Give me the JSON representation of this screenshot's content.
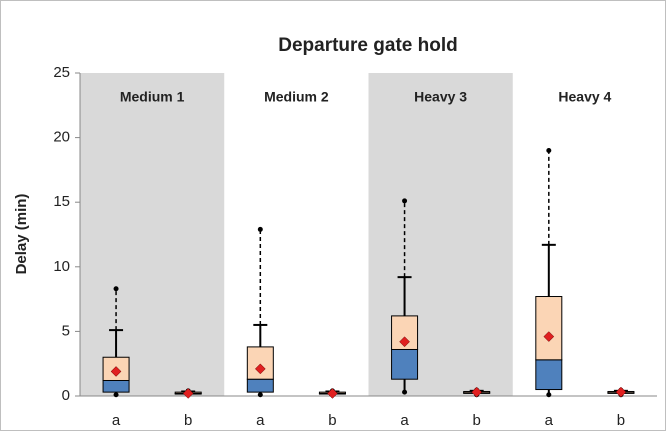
{
  "chart_data": {
    "type": "box",
    "title": "Departure gate hold",
    "y_label": "Delay (min)",
    "groups": [
      "Medium 1",
      "Medium 2",
      "Heavy 3",
      "Heavy 4"
    ],
    "categories": [
      "a",
      "b",
      "a",
      "b",
      "a",
      "b",
      "a",
      "b"
    ],
    "boxes": [
      {
        "min": 0.1,
        "q1": 0.3,
        "median": 1.2,
        "q3": 3.0,
        "whisker_high": 5.1,
        "max": 8.3,
        "mean": 1.9
      },
      {
        "min": 0.1,
        "q1": 0.15,
        "median": 0.2,
        "q3": 0.3,
        "whisker_high": 0.35,
        "max": 0.4,
        "mean": 0.2
      },
      {
        "min": 0.1,
        "q1": 0.3,
        "median": 1.3,
        "q3": 3.8,
        "whisker_high": 5.5,
        "max": 12.9,
        "mean": 2.1
      },
      {
        "min": 0.1,
        "q1": 0.15,
        "median": 0.2,
        "q3": 0.3,
        "whisker_high": 0.35,
        "max": 0.4,
        "mean": 0.2
      },
      {
        "min": 0.3,
        "q1": 1.3,
        "median": 3.6,
        "q3": 6.2,
        "whisker_high": 9.2,
        "max": 15.1,
        "mean": 4.2
      },
      {
        "min": 0.1,
        "q1": 0.2,
        "median": 0.25,
        "q3": 0.35,
        "whisker_high": 0.4,
        "max": 0.45,
        "mean": 0.3
      },
      {
        "min": 0.1,
        "q1": 0.5,
        "median": 2.8,
        "q3": 7.7,
        "whisker_high": 11.7,
        "max": 19.0,
        "mean": 4.6
      },
      {
        "min": 0.1,
        "q1": 0.2,
        "median": 0.25,
        "q3": 0.35,
        "whisker_high": 0.4,
        "max": 0.45,
        "mean": 0.3
      }
    ],
    "lower_color": "#4f81bd",
    "upper_color": "#fbd5b5",
    "mean_color": "#e02020",
    "band_color": "#d9d9d9",
    "ylim": [
      0,
      25
    ],
    "yticks": [
      0,
      5,
      10,
      15,
      20,
      25
    ],
    "grid": false
  }
}
